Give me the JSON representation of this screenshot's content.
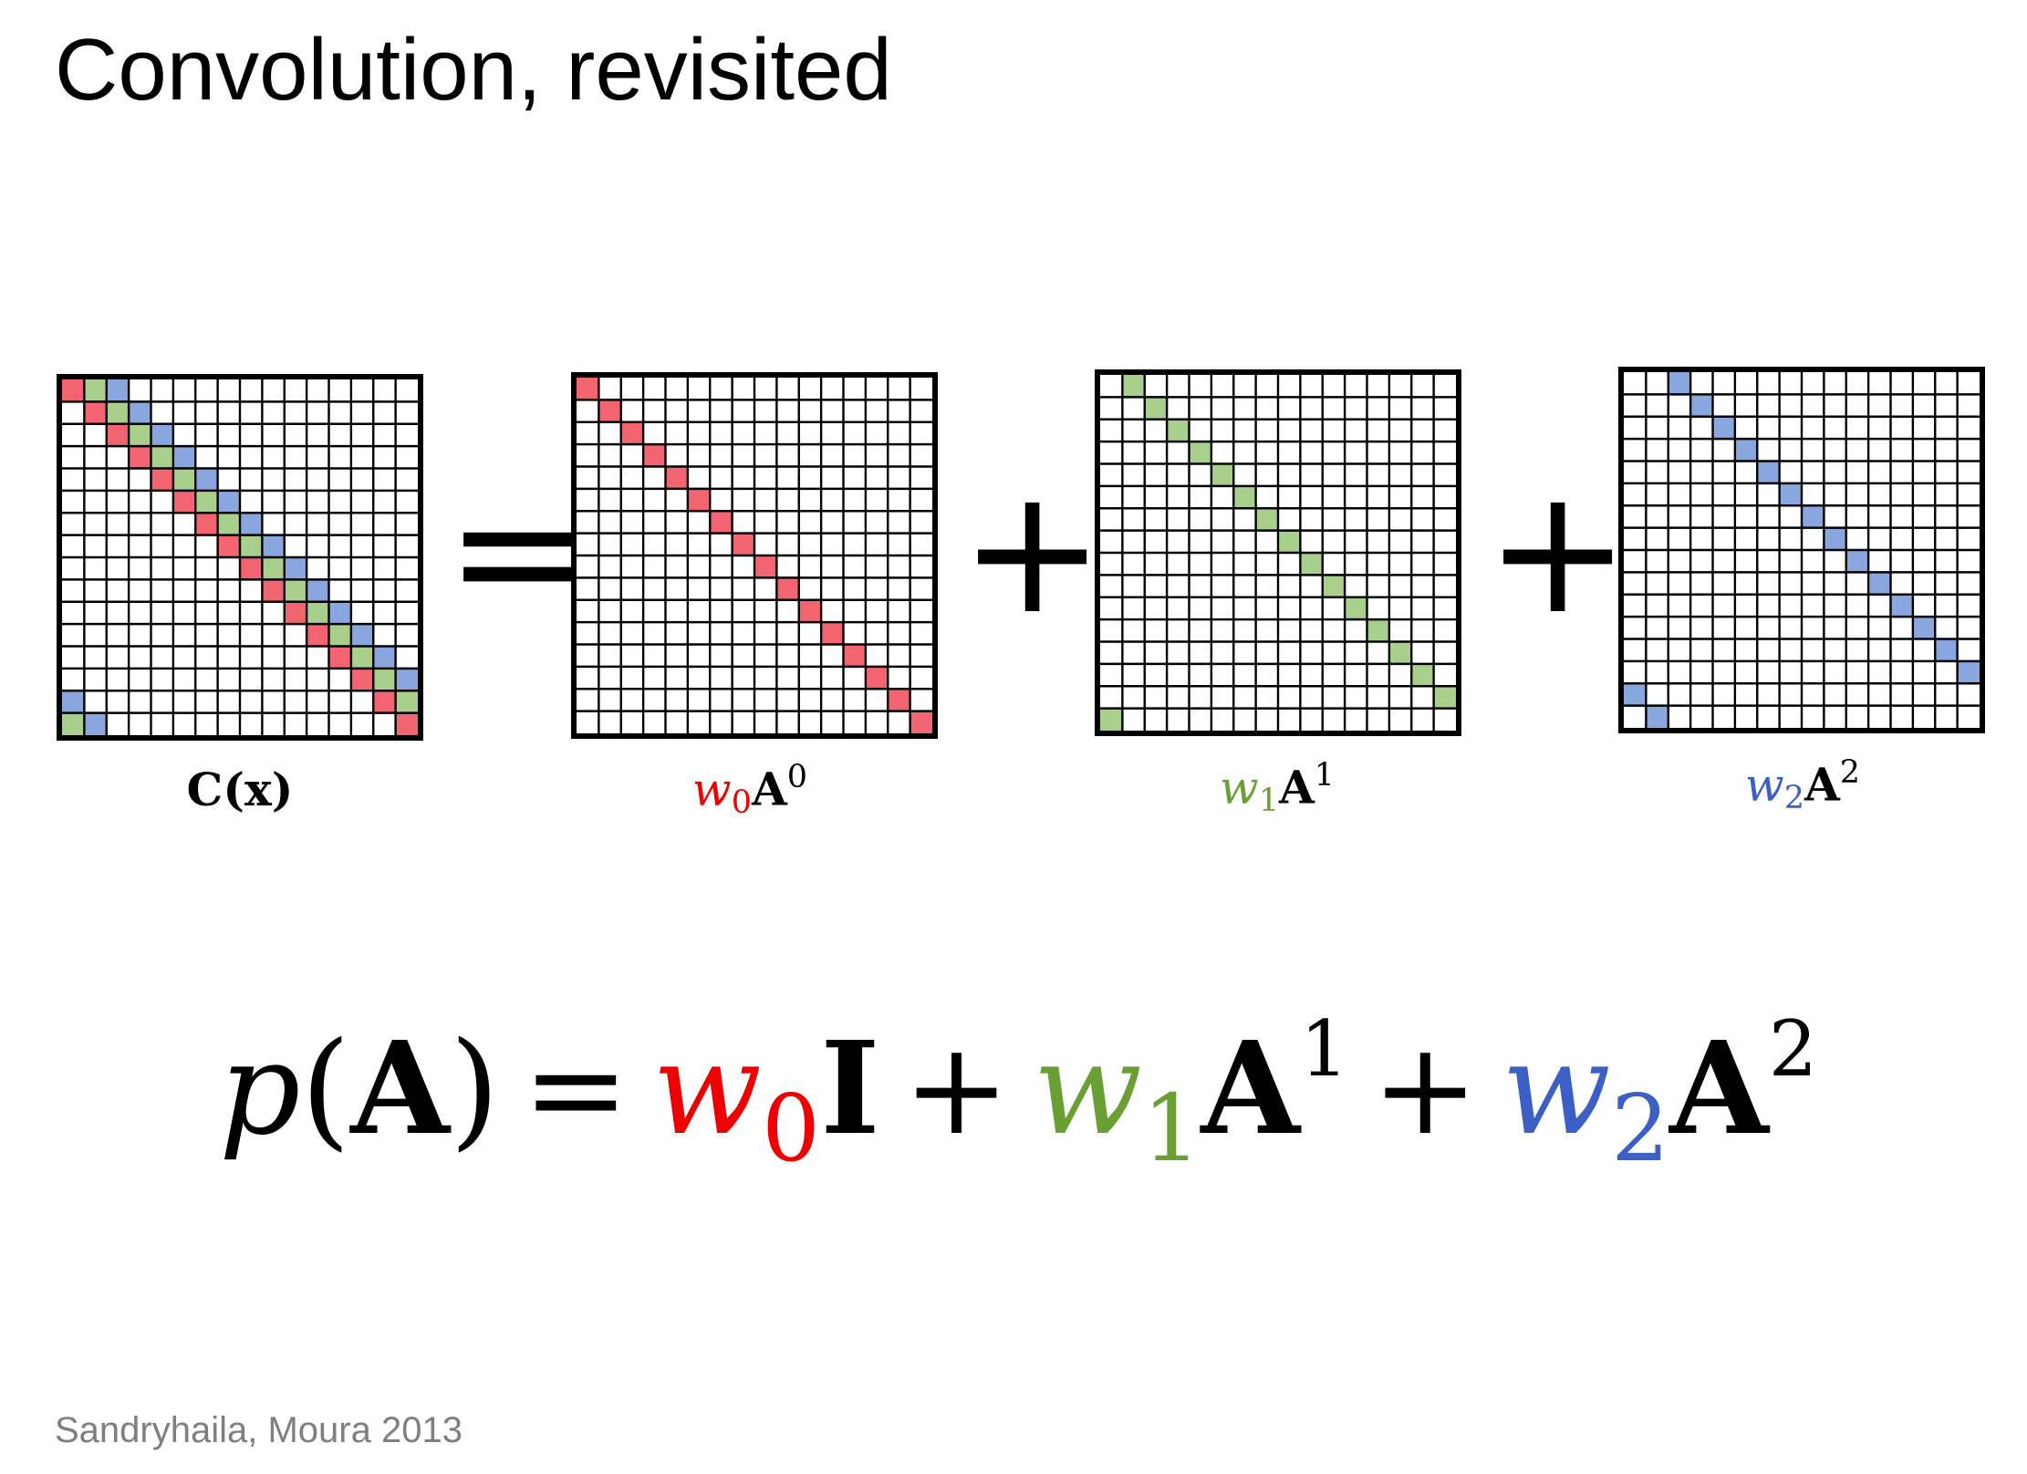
{
  "title": "Convolution, revisited",
  "citation": "Sandryhaila, Moura 2013",
  "colors": {
    "red": "#ee0000",
    "green": "#6aa033",
    "blue": "#3b5fc4",
    "cell_red": "#f26470",
    "cell_green": "#a9cf8c",
    "cell_blue": "#8aa6de"
  },
  "grid_size": 16,
  "operators": {
    "equals": "=",
    "plus": "+"
  },
  "matrices": {
    "c": {
      "label_main": "C",
      "label_arg": "(x)",
      "shifts": [
        0,
        1,
        2
      ]
    },
    "a0": {
      "w": "w",
      "w_sub": "0",
      "base": "A",
      "exp": "0",
      "shifts": [
        0
      ]
    },
    "a1": {
      "w": "w",
      "w_sub": "1",
      "base": "A",
      "exp": "1",
      "shifts": [
        1
      ]
    },
    "a2": {
      "w": "w",
      "w_sub": "2",
      "base": "A",
      "exp": "2",
      "shifts": [
        2
      ]
    }
  },
  "formula": {
    "lhs_p": "p",
    "lhs_open": "(",
    "lhs_arg": "A",
    "lhs_close": ")",
    "eq": "=",
    "t0_w": "w",
    "t0_sub": "0",
    "t0_mat": "I",
    "plus": "+",
    "t1_w": "w",
    "t1_sub": "1",
    "t1_mat": "A",
    "t1_exp": "1",
    "t2_w": "w",
    "t2_sub": "2",
    "t2_mat": "A",
    "t2_exp": "2"
  }
}
